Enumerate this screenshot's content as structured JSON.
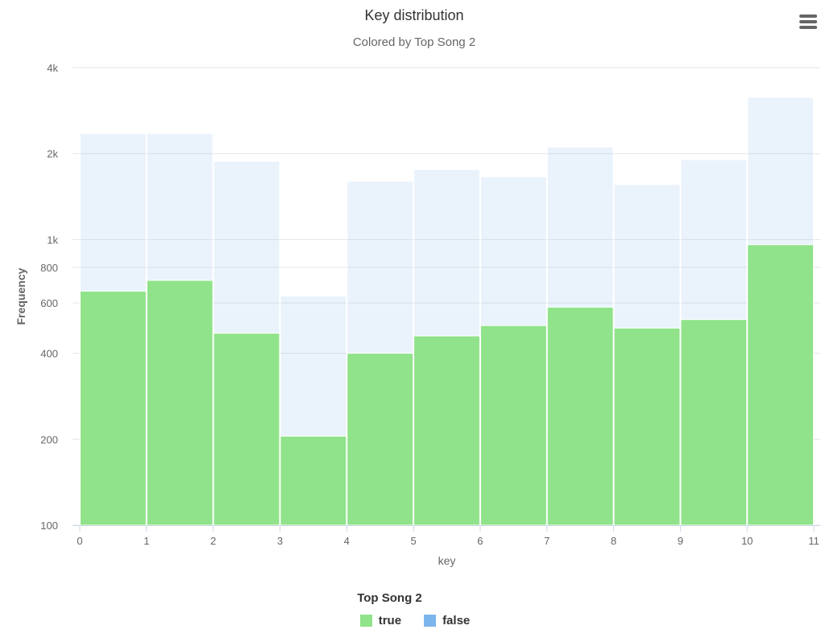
{
  "chart_data": {
    "type": "bar",
    "title": "Key distribution",
    "subtitle": "Colored by Top Song 2",
    "xlabel": "key",
    "ylabel": "Frequency",
    "y_scale": "log",
    "ylim": [
      100,
      4000
    ],
    "y_ticks": [
      100,
      200,
      400,
      600,
      800,
      1000,
      2000,
      4000
    ],
    "y_tick_labels": [
      "100",
      "200",
      "400",
      "600",
      "800",
      "1k",
      "2k",
      "4k"
    ],
    "x_ticks": [
      "0",
      "1",
      "2",
      "3",
      "4",
      "5",
      "6",
      "7",
      "8",
      "9",
      "10",
      "11"
    ],
    "bins": [
      [
        0,
        1
      ],
      [
        1,
        2
      ],
      [
        2,
        3
      ],
      [
        3,
        4
      ],
      [
        4,
        5
      ],
      [
        5,
        6
      ],
      [
        6,
        7
      ],
      [
        7,
        8
      ],
      [
        8,
        9
      ],
      [
        9,
        10
      ],
      [
        10,
        11
      ]
    ],
    "stacked": true,
    "grid": true,
    "legend_position": "bottom",
    "legend_title": "Top Song 2",
    "series": [
      {
        "name": "true",
        "color": "#90e38a",
        "values": [
          660,
          720,
          470,
          205,
          400,
          460,
          500,
          580,
          490,
          525,
          960
        ]
      },
      {
        "name": "false",
        "color": "#7cb5ec",
        "values": [
          1690,
          1630,
          1410,
          430,
          1200,
          1300,
          1160,
          1530,
          1070,
          1380,
          2190
        ]
      }
    ]
  }
}
